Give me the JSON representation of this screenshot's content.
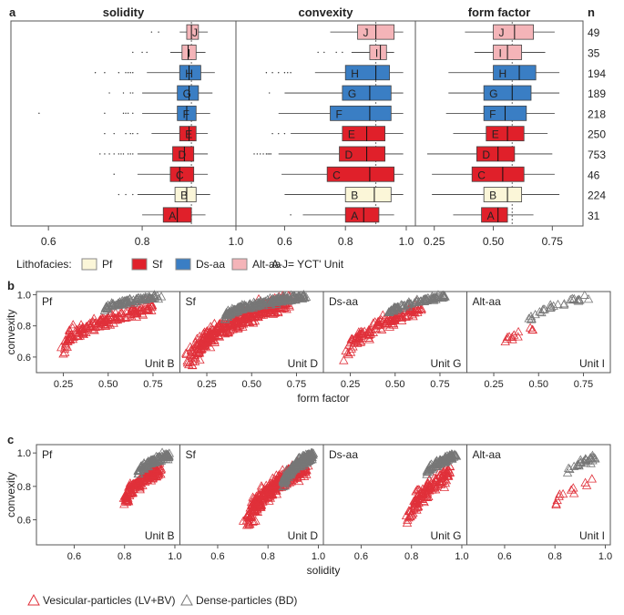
{
  "panel_labels": {
    "a": "a",
    "b": "b",
    "c": "c"
  },
  "legend": {
    "title": "Lithofacies:",
    "items": [
      {
        "label": "Pf",
        "color": "#fbf6d8"
      },
      {
        "label": "Sf",
        "color": "#e0202a"
      },
      {
        "label": "Ds-aa",
        "color": "#3a7ec4"
      },
      {
        "label": "Alt-aa",
        "color": "#f4b4b8"
      }
    ],
    "unit_note": "A-J= YCT' Unit"
  },
  "bottom_legend": {
    "vesicular": "Vesicular-particles (LV+BV)",
    "dense": "Dense-particles (BD)",
    "vesicular_color": "#e0303a",
    "dense_color": "#777777"
  },
  "chart_data": [
    {
      "type": "boxplot",
      "panel": "a",
      "n_label": "n",
      "units": [
        "J",
        "I",
        "H",
        "G",
        "F",
        "E",
        "D",
        "C",
        "B",
        "A"
      ],
      "facies": [
        "Alt-aa",
        "Alt-aa",
        "Ds-aa",
        "Ds-aa",
        "Ds-aa",
        "Sf",
        "Sf",
        "Sf",
        "Pf",
        "Sf"
      ],
      "n": [
        "49",
        "35",
        "194",
        "189",
        "218",
        "250",
        "753",
        "46",
        "224",
        "31"
      ],
      "variables": [
        {
          "title": "solidity",
          "xlim": [
            0.52,
            1.0
          ],
          "ticks": [
            0.6,
            0.8,
            1.0
          ],
          "tick_labels": [
            "0.6",
            "0.8",
            "1.0"
          ],
          "ref_line": 0.905,
          "boxes": [
            {
              "wlo": 0.88,
              "q1": 0.895,
              "med": 0.905,
              "q3": 0.92,
              "whi": 0.94
            },
            {
              "wlo": 0.86,
              "q1": 0.885,
              "med": 0.898,
              "q3": 0.915,
              "whi": 0.935
            },
            {
              "wlo": 0.81,
              "q1": 0.88,
              "med": 0.9,
              "q3": 0.925,
              "whi": 0.955
            },
            {
              "wlo": 0.8,
              "q1": 0.875,
              "med": 0.9,
              "q3": 0.92,
              "whi": 0.95
            },
            {
              "wlo": 0.8,
              "q1": 0.875,
              "med": 0.895,
              "q3": 0.915,
              "whi": 0.945
            },
            {
              "wlo": 0.82,
              "q1": 0.88,
              "med": 0.9,
              "q3": 0.915,
              "whi": 0.94
            },
            {
              "wlo": 0.79,
              "q1": 0.865,
              "med": 0.89,
              "q3": 0.91,
              "whi": 0.94
            },
            {
              "wlo": 0.79,
              "q1": 0.86,
              "med": 0.88,
              "q3": 0.91,
              "whi": 0.94
            },
            {
              "wlo": 0.79,
              "q1": 0.87,
              "med": 0.895,
              "q3": 0.915,
              "whi": 0.945
            },
            {
              "wlo": 0.8,
              "q1": 0.845,
              "med": 0.875,
              "q3": 0.905,
              "whi": 0.935
            }
          ],
          "outliers": [
            [
              0.82,
              0.835
            ],
            [
              0.78,
              0.8,
              0.81
            ],
            [
              0.7,
              0.72,
              0.75,
              0.765,
              0.77,
              0.775,
              0.78
            ],
            [
              0.73,
              0.76,
              0.775,
              0.78
            ],
            [
              0.58,
              0.72,
              0.76,
              0.765,
              0.77,
              0.78
            ],
            [
              0.72,
              0.74,
              0.765,
              0.775,
              0.78,
              0.79
            ],
            [
              0.71,
              0.72,
              0.73,
              0.74,
              0.75,
              0.755,
              0.76,
              0.77,
              0.775,
              0.78
            ],
            [
              0.74
            ],
            [
              0.75,
              0.765,
              0.78
            ],
            []
          ]
        },
        {
          "title": "convexity",
          "xlim": [
            0.44,
            1.03
          ],
          "ticks": [
            0.6,
            0.8,
            1.0
          ],
          "tick_labels": [
            "0.6",
            "0.8",
            "1.0"
          ],
          "ref_line": 0.9,
          "boxes": [
            {
              "wlo": 0.75,
              "q1": 0.84,
              "med": 0.9,
              "q3": 0.96,
              "whi": 0.99
            },
            {
              "wlo": 0.82,
              "q1": 0.88,
              "med": 0.915,
              "q3": 0.935,
              "whi": 0.96
            },
            {
              "wlo": 0.7,
              "q1": 0.8,
              "med": 0.9,
              "q3": 0.945,
              "whi": 0.99
            },
            {
              "wlo": 0.6,
              "q1": 0.79,
              "med": 0.88,
              "q3": 0.95,
              "whi": 0.99
            },
            {
              "wlo": 0.58,
              "q1": 0.75,
              "med": 0.88,
              "q3": 0.95,
              "whi": 0.99
            },
            {
              "wlo": 0.62,
              "q1": 0.79,
              "med": 0.87,
              "q3": 0.93,
              "whi": 0.99
            },
            {
              "wlo": 0.58,
              "q1": 0.78,
              "med": 0.87,
              "q3": 0.93,
              "whi": 0.99
            },
            {
              "wlo": 0.59,
              "q1": 0.74,
              "med": 0.88,
              "q3": 0.96,
              "whi": 0.99
            },
            {
              "wlo": 0.6,
              "q1": 0.8,
              "med": 0.895,
              "q3": 0.95,
              "whi": 0.99
            },
            {
              "wlo": 0.66,
              "q1": 0.8,
              "med": 0.86,
              "q3": 0.91,
              "whi": 0.96
            }
          ],
          "outliers": [
            [],
            [
              0.71,
              0.73,
              0.77,
              0.79
            ],
            [
              0.54,
              0.56,
              0.58,
              0.6,
              0.61,
              0.62
            ],
            [
              0.55
            ],
            [],
            [
              0.56,
              0.58,
              0.6
            ],
            [
              0.5,
              0.51,
              0.52,
              0.53,
              0.54,
              0.545,
              0.55,
              0.555
            ],
            [],
            [],
            [
              0.62
            ]
          ]
        },
        {
          "title": "form factor",
          "xlim": [
            0.17,
            0.88
          ],
          "ticks": [
            0.25,
            0.5,
            0.75
          ],
          "tick_labels": [
            "0.25",
            "0.50",
            "0.75"
          ],
          "ref_line": 0.58,
          "boxes": [
            {
              "wlo": 0.38,
              "q1": 0.5,
              "med": 0.59,
              "q3": 0.67,
              "whi": 0.76
            },
            {
              "wlo": 0.42,
              "q1": 0.5,
              "med": 0.56,
              "q3": 0.62,
              "whi": 0.72
            },
            {
              "wlo": 0.31,
              "q1": 0.5,
              "med": 0.61,
              "q3": 0.68,
              "whi": 0.78
            },
            {
              "wlo": 0.31,
              "q1": 0.46,
              "med": 0.58,
              "q3": 0.66,
              "whi": 0.78
            },
            {
              "wlo": 0.3,
              "q1": 0.46,
              "med": 0.55,
              "q3": 0.64,
              "whi": 0.76
            },
            {
              "wlo": 0.33,
              "q1": 0.47,
              "med": 0.56,
              "q3": 0.63,
              "whi": 0.73
            },
            {
              "wlo": 0.22,
              "q1": 0.43,
              "med": 0.52,
              "q3": 0.59,
              "whi": 0.75
            },
            {
              "wlo": 0.24,
              "q1": 0.41,
              "med": 0.54,
              "q3": 0.63,
              "whi": 0.76
            },
            {
              "wlo": 0.24,
              "q1": 0.46,
              "med": 0.56,
              "q3": 0.62,
              "whi": 0.78
            },
            {
              "wlo": 0.33,
              "q1": 0.45,
              "med": 0.52,
              "q3": 0.56,
              "whi": 0.67
            }
          ],
          "outliers": [
            [],
            [],
            [],
            [],
            [],
            [],
            [],
            [],
            [],
            []
          ]
        }
      ]
    },
    {
      "type": "scatter",
      "panel": "b",
      "xlabel": "form factor",
      "ylabel": "convexity",
      "xlim": [
        0.1,
        0.9
      ],
      "ylim": [
        0.5,
        1.02
      ],
      "xticks": [
        0.25,
        0.5,
        0.75
      ],
      "xtick_labels": [
        "0.25",
        "0.50",
        "0.75"
      ],
      "yticks": [
        0.6,
        0.8,
        1.0
      ],
      "ytick_labels": [
        "0.6",
        "0.8",
        "1.0"
      ],
      "subplots": [
        {
          "facies": "Pf",
          "unit": "Unit B",
          "vesicular": {
            "x": [
              0.25,
              0.75
            ],
            "y": [
              0.64,
              0.93
            ],
            "n": 170,
            "s": 0.04
          },
          "dense": {
            "x": [
              0.48,
              0.8
            ],
            "y": [
              0.9,
              0.99
            ],
            "n": 90,
            "s": 0.015
          }
        },
        {
          "facies": "Sf",
          "unit": "Unit D",
          "vesicular": {
            "x": [
              0.15,
              0.7
            ],
            "y": [
              0.53,
              0.96
            ],
            "n": 420,
            "s": 0.05
          },
          "dense": {
            "x": [
              0.35,
              0.8
            ],
            "y": [
              0.85,
              0.99
            ],
            "n": 240,
            "s": 0.02
          }
        },
        {
          "facies": "Ds-aa",
          "unit": "Unit G",
          "vesicular": {
            "x": [
              0.22,
              0.65
            ],
            "y": [
              0.57,
              0.92
            ],
            "n": 140,
            "s": 0.04
          },
          "dense": {
            "x": [
              0.45,
              0.78
            ],
            "y": [
              0.86,
              0.99
            ],
            "n": 90,
            "s": 0.015
          }
        },
        {
          "facies": "Alt-aa",
          "unit": "Unit I",
          "vesicular": {
            "x": [
              0.28,
              0.5
            ],
            "y": [
              0.66,
              0.78
            ],
            "n": 12,
            "s": 0.02
          },
          "dense": {
            "x": [
              0.45,
              0.78
            ],
            "y": [
              0.83,
              0.98
            ],
            "n": 28,
            "s": 0.02
          }
        }
      ]
    },
    {
      "type": "scatter",
      "panel": "c",
      "xlabel": "solidity",
      "ylabel": "convexity",
      "xlim": [
        0.45,
        1.02
      ],
      "ylim": [
        0.45,
        1.05
      ],
      "xticks": [
        0.6,
        0.8,
        1.0
      ],
      "xtick_labels": [
        "0.6",
        "0.8",
        "1.0"
      ],
      "yticks": [
        0.6,
        0.8,
        1.0
      ],
      "ytick_labels": [
        "0.6",
        "0.8",
        "1.0"
      ],
      "subplots": [
        {
          "facies": "Pf",
          "unit": "Unit B",
          "vesicular": {
            "x": [
              0.8,
              0.94
            ],
            "y": [
              0.68,
              0.9
            ],
            "n": 180,
            "s": 0.04
          },
          "dense": {
            "x": [
              0.85,
              0.98
            ],
            "y": [
              0.86,
              0.99
            ],
            "n": 90,
            "s": 0.02
          }
        },
        {
          "facies": "Sf",
          "unit": "Unit D",
          "vesicular": {
            "x": [
              0.72,
              0.95
            ],
            "y": [
              0.55,
              0.92
            ],
            "n": 400,
            "s": 0.05
          },
          "dense": {
            "x": [
              0.86,
              0.98
            ],
            "y": [
              0.8,
              0.99
            ],
            "n": 240,
            "s": 0.03
          }
        },
        {
          "facies": "Ds-aa",
          "unit": "Unit G",
          "vesicular": {
            "x": [
              0.78,
              0.95
            ],
            "y": [
              0.55,
              0.88
            ],
            "n": 140,
            "s": 0.05
          },
          "dense": {
            "x": [
              0.86,
              0.98
            ],
            "y": [
              0.86,
              0.99
            ],
            "n": 90,
            "s": 0.02
          }
        },
        {
          "facies": "Alt-aa",
          "unit": "Unit I",
          "vesicular": {
            "x": [
              0.8,
              0.95
            ],
            "y": [
              0.7,
              0.82
            ],
            "n": 12,
            "s": 0.03
          },
          "dense": {
            "x": [
              0.85,
              0.96
            ],
            "y": [
              0.88,
              0.97
            ],
            "n": 28,
            "s": 0.02
          }
        }
      ]
    }
  ]
}
